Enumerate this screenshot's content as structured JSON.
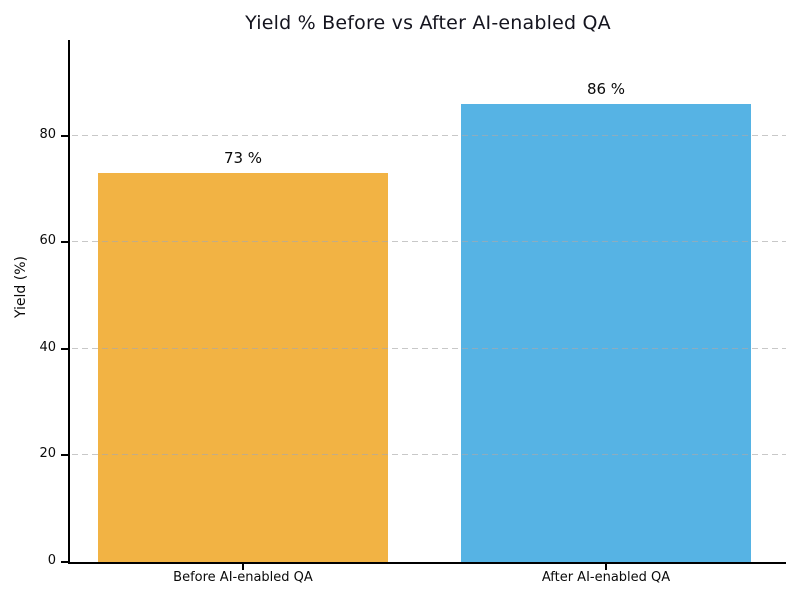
{
  "chart_data": {
    "type": "bar",
    "title": "Yield % Before vs After AI-enabled QA",
    "categories": [
      "Before AI-enabled QA",
      "After AI-enabled QA"
    ],
    "values": [
      73,
      86
    ],
    "value_labels": [
      "73 %",
      "86 %"
    ],
    "bar_colors": [
      "#F2B344",
      "#56B3E4"
    ],
    "xlabel": "",
    "ylabel": "Yield (%)",
    "yticks": [
      0,
      20,
      40,
      60,
      80
    ],
    "ylim": [
      0,
      98
    ],
    "grid": "horizontal-dashed",
    "legend": "none",
    "colors": {
      "background": "#ffffff",
      "spine": "#000000",
      "gridline": "#bfbfbf",
      "text": "#0a0a0a",
      "title": "#14141e"
    }
  }
}
